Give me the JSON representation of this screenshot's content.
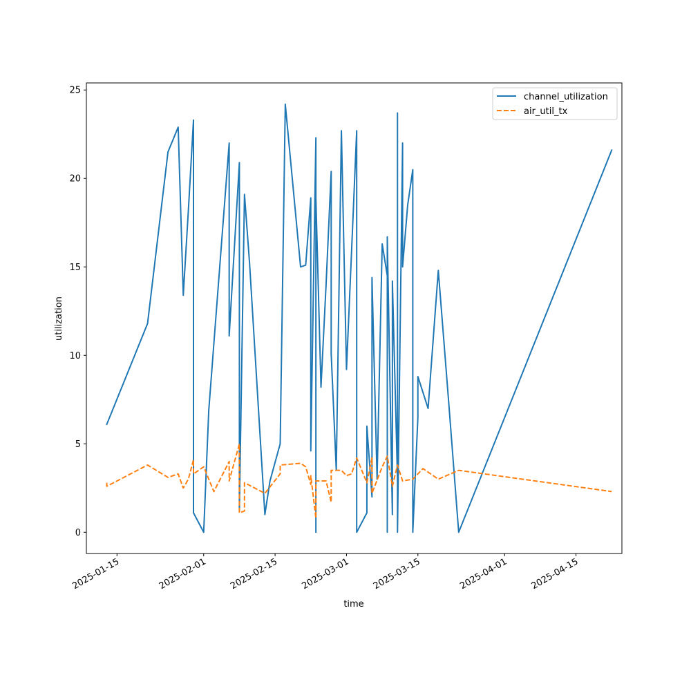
{
  "chart_data": {
    "type": "line",
    "xlabel": "time",
    "ylabel": "utilization",
    "xlim": [
      "2025-01-09",
      "2025-04-24"
    ],
    "ylim": [
      -1.2,
      25.4
    ],
    "y_ticks": [
      0,
      5,
      10,
      15,
      20,
      25
    ],
    "x_ticks": [
      "2025-01-15",
      "2025-02-01",
      "2025-02-15",
      "2025-03-01",
      "2025-03-15",
      "2025-04-01",
      "2025-04-15"
    ],
    "grid": false,
    "legend_position": "top-right",
    "series": [
      {
        "name": "channel_utilization",
        "color": "#1f77b4",
        "style": "solid",
        "points": [
          [
            "2025-01-13",
            6.1
          ],
          [
            "2025-01-21",
            11.8
          ],
          [
            "2025-01-25",
            21.5
          ],
          [
            "2025-01-27",
            22.9
          ],
          [
            "2025-01-28",
            13.4
          ],
          [
            "2025-01-29",
            18.2
          ],
          [
            "2025-01-30",
            23.3
          ],
          [
            "2025-01-30",
            1.1
          ],
          [
            "2025-02-01",
            0.0
          ],
          [
            "2025-02-02",
            6.9
          ],
          [
            "2025-02-06",
            22.0
          ],
          [
            "2025-02-06",
            11.1
          ],
          [
            "2025-02-08",
            20.9
          ],
          [
            "2025-02-08",
            1.2
          ],
          [
            "2025-02-09",
            19.1
          ],
          [
            "2025-02-10",
            15.2
          ],
          [
            "2025-02-13",
            1.0
          ],
          [
            "2025-02-14",
            2.9
          ],
          [
            "2025-02-16",
            5.0
          ],
          [
            "2025-02-17",
            24.2
          ],
          [
            "2025-02-20",
            15.0
          ],
          [
            "2025-02-21",
            15.1
          ],
          [
            "2025-02-22",
            18.9
          ],
          [
            "2025-02-22",
            4.6
          ],
          [
            "2025-02-23",
            22.3
          ],
          [
            "2025-02-23",
            0.0
          ],
          [
            "2025-02-23",
            18.9
          ],
          [
            "2025-02-24",
            8.2
          ],
          [
            "2025-02-25",
            14.0
          ],
          [
            "2025-02-26",
            20.4
          ],
          [
            "2025-02-26",
            10.1
          ],
          [
            "2025-02-27",
            3.5
          ],
          [
            "2025-02-28",
            22.7
          ],
          [
            "2025-03-01",
            9.2
          ],
          [
            "2025-03-02",
            15.9
          ],
          [
            "2025-03-03",
            22.7
          ],
          [
            "2025-03-03",
            0.0
          ],
          [
            "2025-03-05",
            1.1
          ],
          [
            "2025-03-05",
            6.0
          ],
          [
            "2025-03-06",
            2.0
          ],
          [
            "2025-03-06",
            14.4
          ],
          [
            "2025-03-07",
            3.0
          ],
          [
            "2025-03-08",
            16.3
          ],
          [
            "2025-03-09",
            14.5
          ],
          [
            "2025-03-09",
            0.0
          ],
          [
            "2025-03-09",
            16.7
          ],
          [
            "2025-03-10",
            1.0
          ],
          [
            "2025-03-10",
            14.2
          ],
          [
            "2025-03-11",
            3.0
          ],
          [
            "2025-03-11",
            15.1
          ],
          [
            "2025-03-11",
            23.7
          ],
          [
            "2025-03-11",
            0.0
          ],
          [
            "2025-03-12",
            22.0
          ],
          [
            "2025-03-12",
            15.0
          ],
          [
            "2025-03-13",
            18.5
          ],
          [
            "2025-03-14",
            20.5
          ],
          [
            "2025-03-14",
            0.0
          ],
          [
            "2025-03-15",
            6.5
          ],
          [
            "2025-03-15",
            8.8
          ],
          [
            "2025-03-17",
            7.0
          ],
          [
            "2025-03-19",
            14.8
          ],
          [
            "2025-03-21",
            7.5
          ],
          [
            "2025-03-23",
            0.0
          ],
          [
            "2025-04-22",
            21.6
          ]
        ]
      },
      {
        "name": "air_util_tx",
        "color": "#ff7f0e",
        "style": "dashed",
        "points": [
          [
            "2025-01-13",
            2.8
          ],
          [
            "2025-01-13",
            2.6
          ],
          [
            "2025-01-21",
            3.8
          ],
          [
            "2025-01-25",
            3.1
          ],
          [
            "2025-01-27",
            3.3
          ],
          [
            "2025-01-28",
            2.5
          ],
          [
            "2025-01-29",
            3.0
          ],
          [
            "2025-01-30",
            4.1
          ],
          [
            "2025-01-30",
            3.3
          ],
          [
            "2025-02-01",
            3.7
          ],
          [
            "2025-02-03",
            2.3
          ],
          [
            "2025-02-06",
            4.0
          ],
          [
            "2025-02-06",
            2.9
          ],
          [
            "2025-02-08",
            5.0
          ],
          [
            "2025-02-08",
            1.1
          ],
          [
            "2025-02-09",
            1.2
          ],
          [
            "2025-02-09",
            2.8
          ],
          [
            "2025-02-13",
            2.2
          ],
          [
            "2025-02-16",
            3.3
          ],
          [
            "2025-02-16",
            3.8
          ],
          [
            "2025-02-20",
            3.9
          ],
          [
            "2025-02-21",
            3.7
          ],
          [
            "2025-02-22",
            2.7
          ],
          [
            "2025-02-22",
            3.2
          ],
          [
            "2025-02-23",
            0.8
          ],
          [
            "2025-02-23",
            2.9
          ],
          [
            "2025-02-25",
            2.9
          ],
          [
            "2025-02-26",
            1.7
          ],
          [
            "2025-02-26",
            3.5
          ],
          [
            "2025-02-28",
            3.5
          ],
          [
            "2025-03-01",
            3.2
          ],
          [
            "2025-03-02",
            3.3
          ],
          [
            "2025-03-03",
            4.2
          ],
          [
            "2025-03-05",
            2.8
          ],
          [
            "2025-03-06",
            4.2
          ],
          [
            "2025-03-06",
            2.2
          ],
          [
            "2025-03-08",
            3.7
          ],
          [
            "2025-03-09",
            4.3
          ],
          [
            "2025-03-10",
            2.6
          ],
          [
            "2025-03-11",
            3.8
          ],
          [
            "2025-03-12",
            2.9
          ],
          [
            "2025-03-14",
            3.0
          ],
          [
            "2025-03-16",
            3.6
          ],
          [
            "2025-03-19",
            3.0
          ],
          [
            "2025-03-23",
            3.5
          ],
          [
            "2025-04-22",
            2.3
          ]
        ]
      }
    ]
  }
}
